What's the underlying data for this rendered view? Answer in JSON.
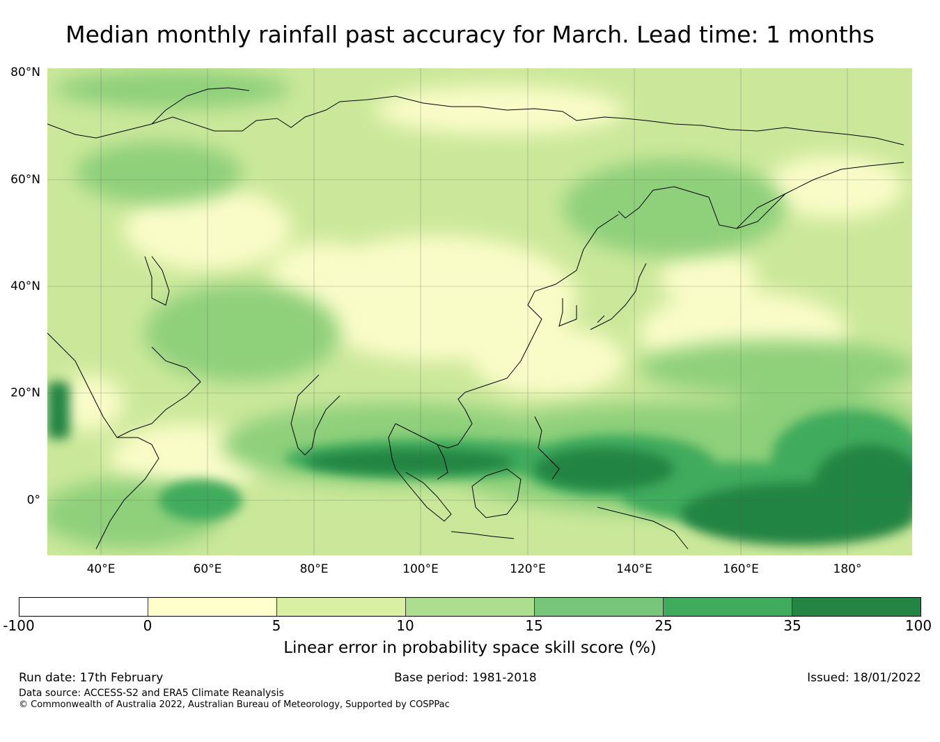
{
  "title": "Median monthly rainfall past accuracy for March. Lead time: 1 months",
  "map": {
    "lat_labels": [
      "80°N",
      "60°N",
      "40°N",
      "20°N",
      "0°"
    ],
    "lon_labels": [
      "40°E",
      "60°E",
      "80°E",
      "100°E",
      "120°E",
      "140°E",
      "160°E",
      "180°"
    ],
    "extent": {
      "lon_min": 30,
      "lon_max": 192,
      "lat_min": -10,
      "lat_max": 80
    }
  },
  "colorbar": {
    "ticks": [
      "-100",
      "0",
      "5",
      "10",
      "15",
      "25",
      "35",
      "100"
    ],
    "colors": [
      "#ffffff",
      "#ffffcc",
      "#d9f0a3",
      "#addd8e",
      "#78c679",
      "#41ab5d",
      "#238443"
    ],
    "label": "Linear error in probability space skill score (%)"
  },
  "footer": {
    "run_date": "Run date: 17th February",
    "base_period": "Base period: 1981-2018",
    "issued": "Issued: 18/01/2022",
    "data_source": "Data source: ACCESS-S2 and ERA5 Climate Reanalysis",
    "copyright": "© Commonwealth of Australia 2022, Australian Bureau of Meteorology, Supported by COSPPac"
  }
}
